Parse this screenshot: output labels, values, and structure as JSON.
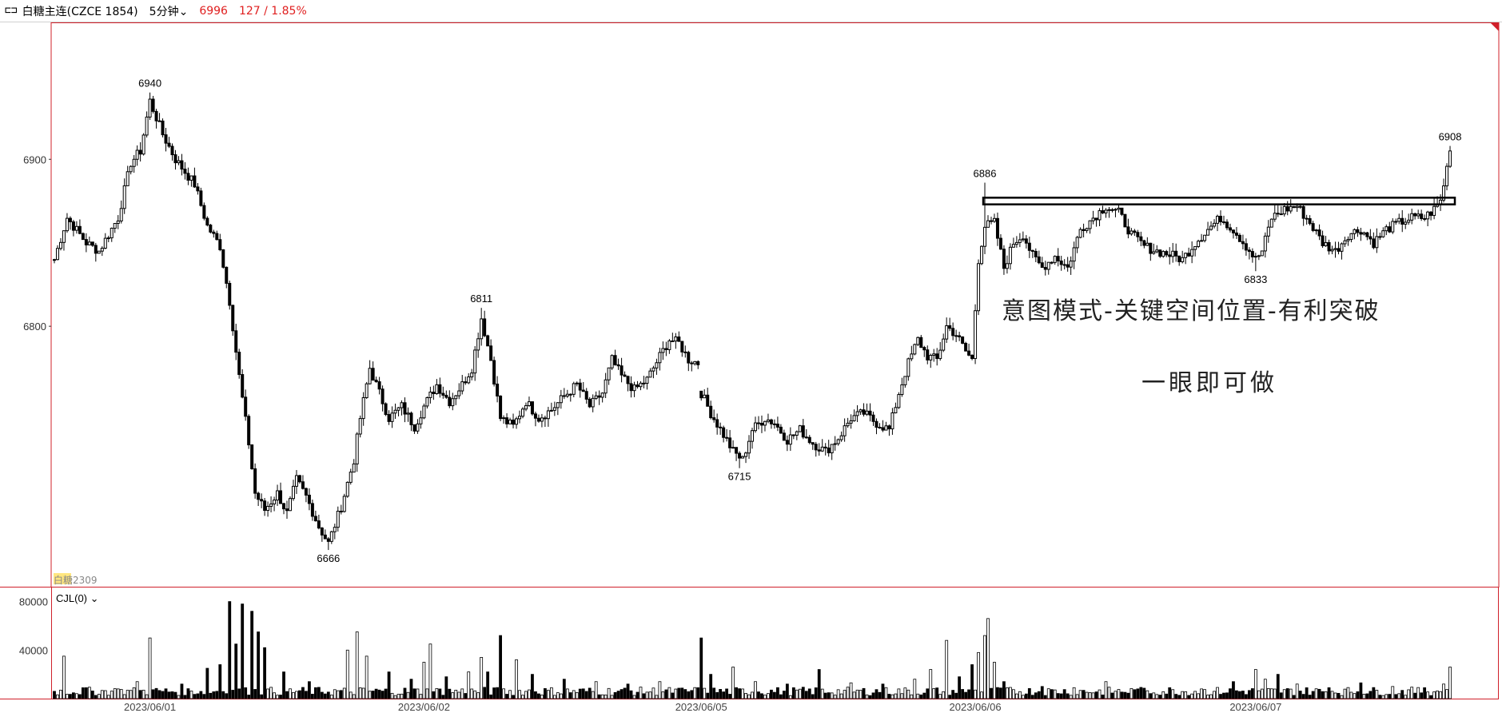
{
  "header": {
    "symbol_icon": "candlestick-chart-icon",
    "title": "白糖主连(CZCE 1854)",
    "period": "5分钟",
    "price": "6996",
    "change": "127 / 1.85%"
  },
  "colors": {
    "frame": "#d0202a",
    "candle": "#000000",
    "price_up": "#e02020",
    "volume": "#000000"
  },
  "chart_data": [
    {
      "type": "candlestick",
      "title": "",
      "xlabel": "",
      "ylabel": "",
      "ylim": [
        6644,
        6982
      ],
      "y_ticks": [
        "6900",
        "6800"
      ],
      "x_ticks": [
        "2023/06/01",
        "2023/06/02",
        "2023/06/05",
        "2023/06/06",
        "2023/06/07"
      ],
      "contract_label": "白糖2309",
      "close_path": [
        [
          0,
          6840
        ],
        [
          4,
          6865
        ],
        [
          10,
          6850
        ],
        [
          14,
          6845
        ],
        [
          20,
          6865
        ],
        [
          24,
          6898
        ],
        [
          27,
          6905
        ],
        [
          30,
          6935
        ],
        [
          34,
          6915
        ],
        [
          38,
          6900
        ],
        [
          44,
          6885
        ],
        [
          48,
          6860
        ],
        [
          52,
          6848
        ],
        [
          55,
          6815
        ],
        [
          58,
          6770
        ],
        [
          61,
          6730
        ],
        [
          63,
          6700
        ],
        [
          66,
          6690
        ],
        [
          70,
          6700
        ],
        [
          73,
          6688
        ],
        [
          76,
          6708
        ],
        [
          79,
          6698
        ],
        [
          83,
          6680
        ],
        [
          86,
          6670
        ],
        [
          90,
          6692
        ],
        [
          94,
          6720
        ],
        [
          96,
          6745
        ],
        [
          99,
          6775
        ],
        [
          102,
          6760
        ],
        [
          105,
          6745
        ],
        [
          109,
          6752
        ],
        [
          113,
          6740
        ],
        [
          116,
          6752
        ],
        [
          120,
          6765
        ],
        [
          124,
          6755
        ],
        [
          128,
          6765
        ],
        [
          131,
          6775
        ],
        [
          134,
          6805
        ],
        [
          137,
          6780
        ],
        [
          140,
          6745
        ],
        [
          144,
          6740
        ],
        [
          148,
          6755
        ],
        [
          152,
          6745
        ],
        [
          156,
          6750
        ],
        [
          160,
          6758
        ],
        [
          164,
          6765
        ],
        [
          168,
          6752
        ],
        [
          172,
          6760
        ],
        [
          175,
          6780
        ],
        [
          178,
          6770
        ],
        [
          182,
          6762
        ],
        [
          186,
          6768
        ],
        [
          190,
          6782
        ],
        [
          193,
          6792
        ],
        [
          196,
          6790
        ],
        [
          199,
          6780
        ],
        [
          202,
          6778
        ],
        [
          203,
          6760
        ],
        [
          206,
          6748
        ],
        [
          210,
          6735
        ],
        [
          213,
          6725
        ],
        [
          216,
          6720
        ],
        [
          219,
          6738
        ],
        [
          223,
          6745
        ],
        [
          226,
          6742
        ],
        [
          230,
          6732
        ],
        [
          234,
          6738
        ],
        [
          238,
          6730
        ],
        [
          242,
          6725
        ],
        [
          246,
          6733
        ],
        [
          250,
          6745
        ],
        [
          254,
          6748
        ],
        [
          258,
          6742
        ],
        [
          262,
          6738
        ],
        [
          265,
          6760
        ],
        [
          268,
          6778
        ],
        [
          271,
          6792
        ],
        [
          274,
          6782
        ],
        [
          277,
          6780
        ],
        [
          280,
          6800
        ],
        [
          283,
          6795
        ],
        [
          286,
          6785
        ],
        [
          288,
          6780
        ],
        [
          290,
          6840
        ],
        [
          292,
          6860
        ],
        [
          295,
          6862
        ],
        [
          298,
          6835
        ],
        [
          301,
          6850
        ],
        [
          304,
          6855
        ],
        [
          307,
          6842
        ],
        [
          310,
          6835
        ],
        [
          314,
          6842
        ],
        [
          318,
          6835
        ],
        [
          322,
          6858
        ],
        [
          326,
          6865
        ],
        [
          330,
          6872
        ],
        [
          334,
          6868
        ],
        [
          338,
          6855
        ],
        [
          342,
          6848
        ],
        [
          346,
          6845
        ],
        [
          350,
          6843
        ],
        [
          354,
          6840
        ],
        [
          358,
          6850
        ],
        [
          362,
          6858
        ],
        [
          366,
          6865
        ],
        [
          370,
          6858
        ],
        [
          374,
          6848
        ],
        [
          377,
          6840
        ],
        [
          379,
          6845
        ],
        [
          382,
          6865
        ],
        [
          386,
          6870
        ],
        [
          390,
          6872
        ],
        [
          394,
          6862
        ],
        [
          398,
          6850
        ],
        [
          402,
          6845
        ],
        [
          406,
          6855
        ],
        [
          410,
          6858
        ],
        [
          414,
          6850
        ],
        [
          418,
          6858
        ],
        [
          422,
          6862
        ],
        [
          426,
          6865
        ],
        [
          430,
          6865
        ],
        [
          433,
          6870
        ],
        [
          435,
          6875
        ],
        [
          437,
          6895
        ],
        [
          438,
          6905
        ]
      ],
      "annotations": [
        {
          "label": "6940",
          "bar": 30,
          "value": 6940,
          "kind": "high"
        },
        {
          "label": "6666",
          "bar": 86,
          "value": 6666,
          "kind": "low"
        },
        {
          "label": "6811",
          "bar": 134,
          "value": 6811,
          "kind": "high"
        },
        {
          "label": "6715",
          "bar": 215,
          "value": 6715,
          "kind": "low"
        },
        {
          "label": "6886",
          "bar": 292,
          "value": 6886,
          "kind": "high"
        },
        {
          "label": "6833",
          "bar": 377,
          "value": 6833,
          "kind": "low"
        },
        {
          "label": "6908",
          "bar": 438,
          "value": 6908,
          "kind": "high"
        }
      ],
      "resistance_box": {
        "from_bar": 292,
        "to_bar": 439,
        "low": 6873,
        "high": 6877
      },
      "text_notes": [
        "意图模式-关键空间位置-有利突破",
        "一眼即可做"
      ]
    },
    {
      "type": "bar",
      "title": "CJL(0)",
      "ylabel": "",
      "ylim": [
        0,
        85000
      ],
      "y_ticks": [
        "80000",
        "40000"
      ],
      "peaks": [
        [
          0,
          6000
        ],
        [
          3,
          35000
        ],
        [
          10,
          9000
        ],
        [
          20,
          8000
        ],
        [
          26,
          14000
        ],
        [
          30,
          50000
        ],
        [
          40,
          12000
        ],
        [
          48,
          25000
        ],
        [
          52,
          28000
        ],
        [
          55,
          80000
        ],
        [
          57,
          45000
        ],
        [
          59,
          78000
        ],
        [
          62,
          72000
        ],
        [
          64,
          55000
        ],
        [
          66,
          42000
        ],
        [
          72,
          22000
        ],
        [
          80,
          14000
        ],
        [
          92,
          40000
        ],
        [
          95,
          55000
        ],
        [
          98,
          35000
        ],
        [
          105,
          22000
        ],
        [
          112,
          16000
        ],
        [
          116,
          30000
        ],
        [
          118,
          45000
        ],
        [
          123,
          18000
        ],
        [
          130,
          22000
        ],
        [
          134,
          34000
        ],
        [
          136,
          22000
        ],
        [
          140,
          52000
        ],
        [
          145,
          32000
        ],
        [
          150,
          20000
        ],
        [
          160,
          16000
        ],
        [
          170,
          14000
        ],
        [
          180,
          12000
        ],
        [
          190,
          14000
        ],
        [
          202,
          9000
        ],
        [
          203,
          50000
        ],
        [
          206,
          20000
        ],
        [
          213,
          26000
        ],
        [
          220,
          14000
        ],
        [
          230,
          12000
        ],
        [
          240,
          24000
        ],
        [
          250,
          13000
        ],
        [
          260,
          12000
        ],
        [
          270,
          16000
        ],
        [
          275,
          24000
        ],
        [
          280,
          48000
        ],
        [
          284,
          18000
        ],
        [
          288,
          28000
        ],
        [
          290,
          38000
        ],
        [
          292,
          52000
        ],
        [
          293,
          66000
        ],
        [
          295,
          30000
        ],
        [
          298,
          14000
        ],
        [
          310,
          10000
        ],
        [
          320,
          9000
        ],
        [
          330,
          14000
        ],
        [
          340,
          8000
        ],
        [
          350,
          9000
        ],
        [
          360,
          8000
        ],
        [
          370,
          14000
        ],
        [
          377,
          24000
        ],
        [
          380,
          16000
        ],
        [
          384,
          20000
        ],
        [
          390,
          12000
        ],
        [
          400,
          9000
        ],
        [
          410,
          13000
        ],
        [
          420,
          10000
        ],
        [
          430,
          9000
        ],
        [
          436,
          12000
        ],
        [
          438,
          26000
        ]
      ]
    }
  ]
}
